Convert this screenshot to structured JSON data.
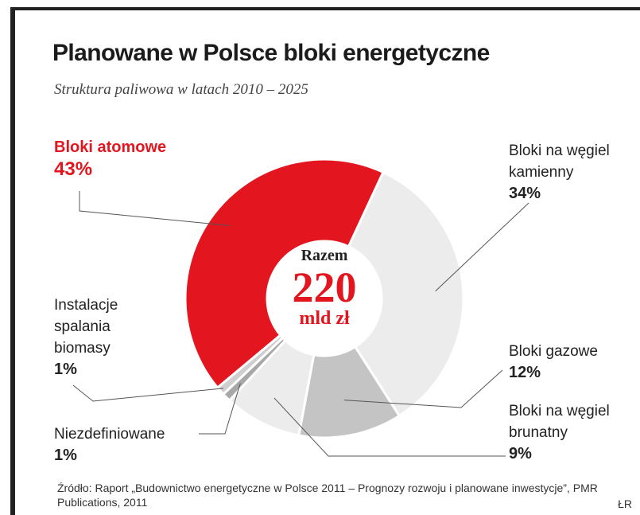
{
  "title": "Planowane w Polsce bloki energetyczne",
  "subtitle": "Struktura paliwowa w latach 2010 – 2025",
  "center": {
    "label": "Razem",
    "value": "220",
    "unit": "mld zł"
  },
  "labels": {
    "atom": {
      "name": "Bloki atomowe",
      "pct": "43%"
    },
    "kamienny": {
      "line1": "Bloki na węgiel",
      "line2": "kamienny",
      "pct": "34%"
    },
    "gazowe": {
      "name": "Bloki gazowe",
      "pct": "12%"
    },
    "brunatny": {
      "line1": "Bloki na węgiel",
      "line2": "brunatny",
      "pct": "9%"
    },
    "biomasa": {
      "line1": "Instalacje",
      "line2": "spalania",
      "line3": "biomasy",
      "pct": "1%"
    },
    "niezdef": {
      "name": "Niezdefiniowane",
      "pct": "1%"
    }
  },
  "source": "Źródło: Raport „Budownictwo energetyczne w Polsce 2011 – Prognozy rozwoju i planowane inwestycje”, PMR Publications, 2011",
  "author": "ŁR",
  "colors": {
    "accent": "#e3161f",
    "light": "#ececec",
    "mid": "#c4c4c4",
    "dark": "#a8a8a8"
  },
  "chart_data": {
    "type": "pie",
    "donut": true,
    "title": "Planowane w Polsce bloki energetyczne",
    "subtitle": "Struktura paliwowa w latach 2010 – 2025",
    "categories": [
      "Bloki na węgiel kamienny",
      "Bloki gazowe",
      "Bloki na węgiel brunatny",
      "Niezdefiniowane",
      "Instalacje spalania biomasy",
      "Bloki atomowe"
    ],
    "values": [
      34,
      12,
      9,
      1,
      1,
      43
    ],
    "unit": "%",
    "colors": [
      "#ececec",
      "#c4c4c4",
      "#ececec",
      "#a8a8a8",
      "#cfcfcf",
      "#e3161f"
    ],
    "total_label": "Razem",
    "total_value": "220",
    "total_unit": "mld zł"
  }
}
